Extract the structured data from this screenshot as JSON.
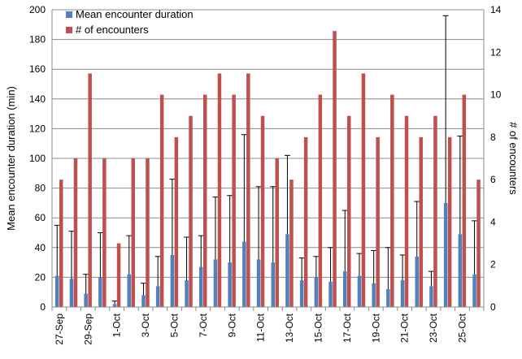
{
  "chart_data": {
    "type": "bar",
    "title": "",
    "ylabel_left": "Mean encounter duration (min)",
    "ylabel_right": "# of encounters",
    "y_left_range": [
      0,
      200
    ],
    "y_left_ticks": [
      "0",
      "20",
      "40",
      "60",
      "80",
      "100",
      "120",
      "140",
      "160",
      "180",
      "200"
    ],
    "y_right_range": [
      0,
      14
    ],
    "y_right_ticks": [
      "0",
      "2",
      "4",
      "6",
      "8",
      "10",
      "12",
      "14"
    ],
    "grid": true,
    "legend_position": "top-left",
    "categories": [
      "27-Sep",
      "28-Sep",
      "29-Sep",
      "30-Sep",
      "1-Oct",
      "2-Oct",
      "3-Oct",
      "4-Oct",
      "5-Oct",
      "6-Oct",
      "7-Oct",
      "8-Oct",
      "9-Oct",
      "10-Oct",
      "11-Oct",
      "12-Oct",
      "13-Oct",
      "14-Oct",
      "15-Oct",
      "16-Oct",
      "17-Oct",
      "18-Oct",
      "19-Oct",
      "20-Oct",
      "21-Oct",
      "22-Oct",
      "23-Oct",
      "24-Oct",
      "25-Oct",
      "26-Oct"
    ],
    "x_tick_labels": [
      "27-Sep",
      "29-Sep",
      "1-Oct",
      "3-Oct",
      "5-Oct",
      "7-Oct",
      "9-Oct",
      "11-Oct",
      "13-Oct",
      "15-Oct",
      "17-Oct",
      "19-Oct",
      "21-Oct",
      "23-Oct",
      "25-Oct"
    ],
    "series": [
      {
        "name": "Mean encounter duration",
        "axis": "left",
        "color": "#4f81bd",
        "values": [
          21,
          19,
          9,
          20,
          2,
          22,
          8,
          14,
          35,
          18,
          27,
          32,
          30,
          44,
          32,
          30,
          49,
          18,
          20,
          17,
          24,
          21,
          16,
          12,
          18,
          34,
          14,
          70,
          49,
          22
        ],
        "error_upper": [
          55,
          51,
          22,
          50,
          4,
          48,
          16,
          34,
          86,
          47,
          48,
          74,
          75,
          116,
          81,
          81,
          102,
          33,
          34,
          40,
          65,
          36,
          38,
          40,
          35,
          71,
          24,
          196,
          115,
          58
        ]
      },
      {
        "name": "# of encounters",
        "axis": "right",
        "color": "#c0504d",
        "values": [
          6,
          7,
          11,
          7,
          3,
          7,
          7,
          10,
          8,
          9,
          10,
          11,
          10,
          11,
          9,
          7,
          6,
          8,
          10,
          13,
          9,
          11,
          8,
          10,
          9,
          8,
          9,
          8,
          10,
          6
        ]
      }
    ]
  }
}
